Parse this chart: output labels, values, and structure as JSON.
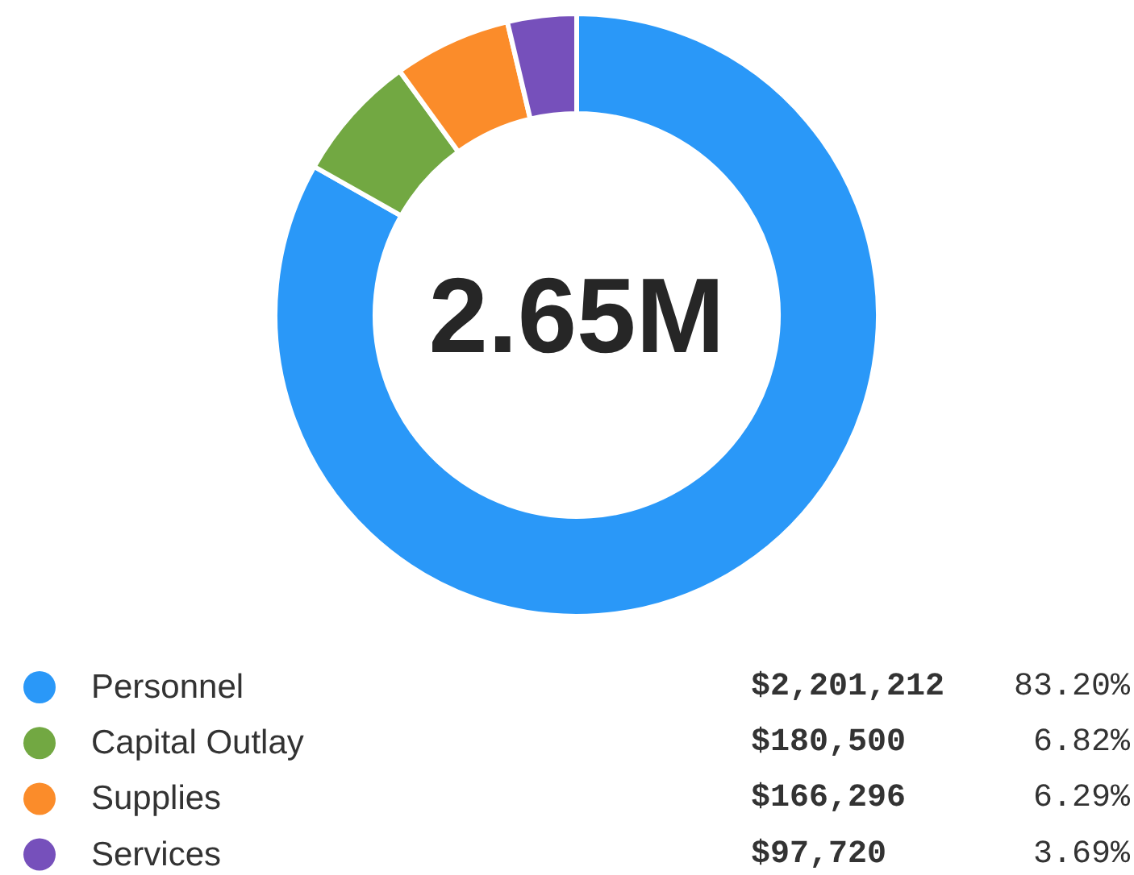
{
  "chart_data": {
    "type": "donut",
    "categories": [
      "Personnel",
      "Capital Outlay",
      "Supplies",
      "Services"
    ],
    "values": [
      2201212,
      180500,
      166296,
      97720
    ],
    "colors": [
      "#2a98f8",
      "#72a842",
      "#fb8c2a",
      "#7650bb"
    ],
    "value_labels": [
      "$2,201,212",
      "$180,500",
      "$166,296",
      "$97,720"
    ],
    "annotations": [
      "2.65M",
      "83.20%",
      "6.82%",
      "6.29%",
      "3.69%"
    ],
    "legend": "bottom"
  }
}
